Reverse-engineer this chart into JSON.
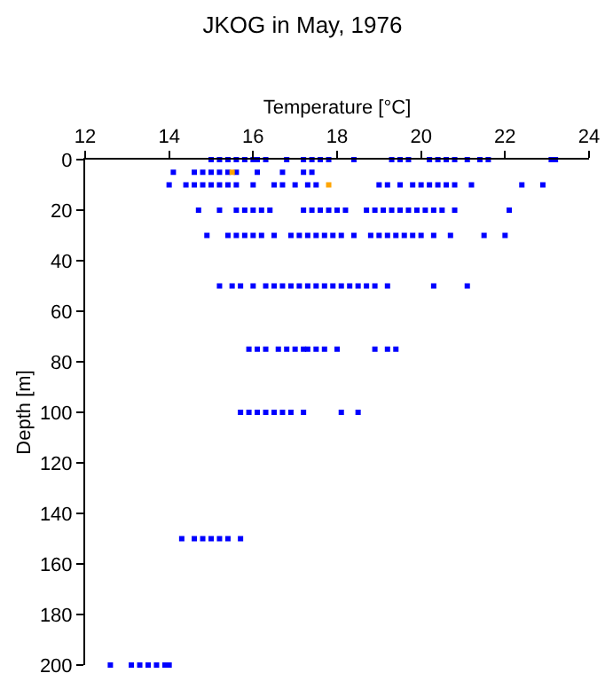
{
  "chart_data": {
    "type": "scatter",
    "title": "JKOG in May, 1976",
    "xlabel": "Temperature [°C]",
    "ylabel": "Depth [m]",
    "xlim": [
      12,
      24
    ],
    "xticks": [
      12,
      14,
      16,
      18,
      20,
      22,
      24
    ],
    "ylim": [
      200,
      0
    ],
    "yticks": [
      0,
      20,
      40,
      60,
      80,
      100,
      120,
      140,
      160,
      180,
      200
    ],
    "marker": "square",
    "series": [
      {
        "color": "#0000ff",
        "x": [
          15.0,
          15.2,
          15.4,
          15.6,
          15.8,
          16.0,
          16.1,
          16.3,
          16.8,
          17.2,
          17.4,
          17.6,
          17.8,
          18.4,
          19.3,
          19.5,
          19.7,
          20.2,
          20.4,
          20.6,
          20.8,
          21.1,
          21.4,
          21.6,
          23.1,
          23.2,
          14.1,
          14.6,
          14.8,
          15.0,
          15.2,
          15.4,
          15.6,
          16.1,
          16.7,
          17.2,
          17.4,
          14.0,
          14.4,
          14.6,
          14.8,
          15.0,
          15.2,
          15.4,
          15.6,
          16.0,
          16.5,
          16.7,
          17.0,
          17.3,
          17.5,
          19.0,
          19.2,
          19.5,
          19.8,
          20.0,
          20.2,
          20.4,
          20.6,
          20.8,
          21.2,
          22.4,
          22.9,
          14.7,
          15.2,
          15.6,
          15.8,
          16.0,
          16.2,
          16.4,
          17.2,
          17.4,
          17.6,
          17.8,
          18.0,
          18.2,
          18.7,
          18.9,
          19.1,
          19.3,
          19.5,
          19.7,
          19.9,
          20.1,
          20.3,
          20.5,
          20.8,
          22.1,
          14.9,
          15.4,
          15.6,
          15.8,
          16.0,
          16.2,
          16.5,
          16.9,
          17.1,
          17.3,
          17.5,
          17.7,
          17.9,
          18.1,
          18.4,
          18.8,
          19.0,
          19.2,
          19.4,
          19.6,
          19.8,
          20.0,
          20.3,
          20.7,
          21.5,
          22.0,
          15.2,
          15.5,
          15.7,
          16.0,
          16.3,
          16.5,
          16.7,
          16.9,
          17.1,
          17.3,
          17.5,
          17.7,
          17.9,
          18.1,
          18.3,
          18.5,
          18.7,
          18.9,
          19.2,
          20.3,
          21.1,
          15.9,
          16.1,
          16.3,
          16.6,
          16.8,
          17.0,
          17.2,
          17.3,
          17.5,
          17.7,
          18.0,
          18.9,
          19.2,
          19.4,
          15.7,
          15.9,
          16.1,
          16.3,
          16.5,
          16.7,
          16.9,
          17.2,
          18.1,
          18.5,
          14.3,
          14.6,
          14.8,
          15.0,
          15.2,
          15.4,
          15.7,
          12.6,
          13.1,
          13.3,
          13.5,
          13.7,
          13.9,
          14.0
        ],
        "values": [
          0,
          0,
          0,
          0,
          0,
          0,
          0,
          0,
          0,
          0,
          0,
          0,
          0,
          0,
          0,
          0,
          0,
          0,
          0,
          0,
          0,
          0,
          0,
          0,
          0,
          0,
          5,
          5,
          5,
          5,
          5,
          5,
          5,
          5,
          5,
          5,
          5,
          10,
          10,
          10,
          10,
          10,
          10,
          10,
          10,
          10,
          10,
          10,
          10,
          10,
          10,
          10,
          10,
          10,
          10,
          10,
          10,
          10,
          10,
          10,
          10,
          10,
          10,
          20,
          20,
          20,
          20,
          20,
          20,
          20,
          20,
          20,
          20,
          20,
          20,
          20,
          20,
          20,
          20,
          20,
          20,
          20,
          20,
          20,
          20,
          20,
          20,
          20,
          30,
          30,
          30,
          30,
          30,
          30,
          30,
          30,
          30,
          30,
          30,
          30,
          30,
          30,
          30,
          30,
          30,
          30,
          30,
          30,
          30,
          30,
          30,
          30,
          30,
          30,
          50,
          50,
          50,
          50,
          50,
          50,
          50,
          50,
          50,
          50,
          50,
          50,
          50,
          50,
          50,
          50,
          50,
          50,
          50,
          50,
          50,
          75,
          75,
          75,
          75,
          75,
          75,
          75,
          75,
          75,
          75,
          75,
          75,
          75,
          75,
          100,
          100,
          100,
          100,
          100,
          100,
          100,
          100,
          100,
          100,
          150,
          150,
          150,
          150,
          150,
          150,
          150,
          200,
          200,
          200,
          200,
          200,
          200,
          200
        ]
      },
      {
        "color": "#ffa500",
        "x": [
          15.5,
          17.8
        ],
        "values": [
          5,
          10
        ]
      }
    ]
  }
}
